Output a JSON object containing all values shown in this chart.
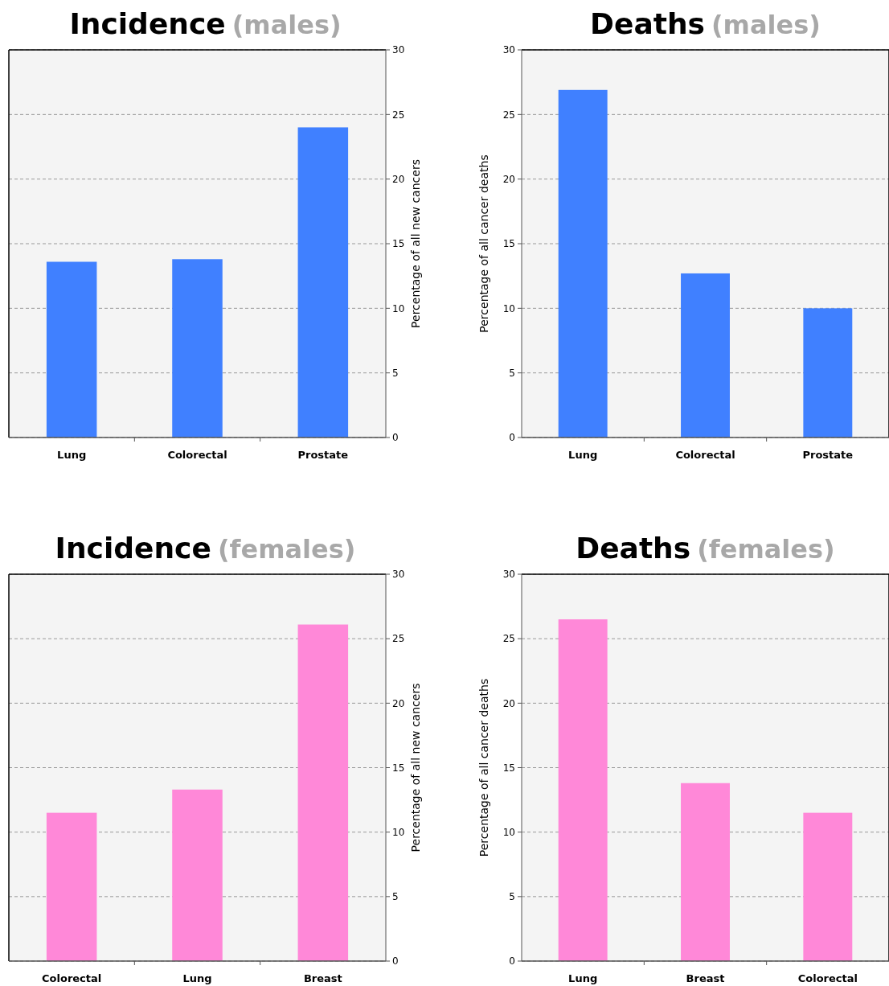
{
  "chart_data": [
    {
      "type": "bar",
      "title": "Incidence",
      "subtitle": "(males)",
      "categories": [
        "Lung",
        "Colorectal",
        "Prostate"
      ],
      "series": [
        {
          "color": "#4080ff",
          "values": [
            13.6,
            13.8,
            24.0
          ],
          "axis": "y2"
        }
      ],
      "y2lim": [
        0,
        30
      ],
      "y2ticks": [
        0,
        5,
        10,
        15,
        20,
        25,
        30
      ],
      "y2label": "Percentage of all new cancers",
      "grid": true
    },
    {
      "type": "bar",
      "title": "Deaths",
      "subtitle": "(males)",
      "categories": [
        "Lung",
        "Colorectal",
        "Prostate"
      ],
      "series": [
        {
          "color": "#4080ff",
          "values": [
            26.9,
            12.7,
            10.0
          ]
        }
      ],
      "ylim": [
        0,
        30
      ],
      "yticks": [
        0,
        5,
        10,
        15,
        20,
        25,
        30
      ],
      "ylabel": "Percentage of all cancer deaths",
      "grid": true
    },
    {
      "type": "bar",
      "title": "Incidence",
      "subtitle": "(females)",
      "categories": [
        "Colorectal",
        "Lung",
        "Breast"
      ],
      "series": [
        {
          "color": "#ff88d8",
          "values": [
            11.5,
            13.3,
            26.1
          ],
          "axis": "y2"
        }
      ],
      "y2lim": [
        0,
        30
      ],
      "y2ticks": [
        0,
        5,
        10,
        15,
        20,
        25,
        30
      ],
      "y2label": "Percentage of all new cancers",
      "grid": true
    },
    {
      "type": "bar",
      "title": "Deaths",
      "subtitle": "(females)",
      "categories": [
        "Lung",
        "Breast",
        "Colorectal"
      ],
      "series": [
        {
          "color": "#ff88d8",
          "values": [
            26.5,
            13.8,
            11.5
          ]
        }
      ],
      "ylim": [
        0,
        30
      ],
      "yticks": [
        0,
        5,
        10,
        15,
        20,
        25,
        30
      ],
      "ylabel": "Percentage of all cancer deaths",
      "grid": true
    }
  ]
}
